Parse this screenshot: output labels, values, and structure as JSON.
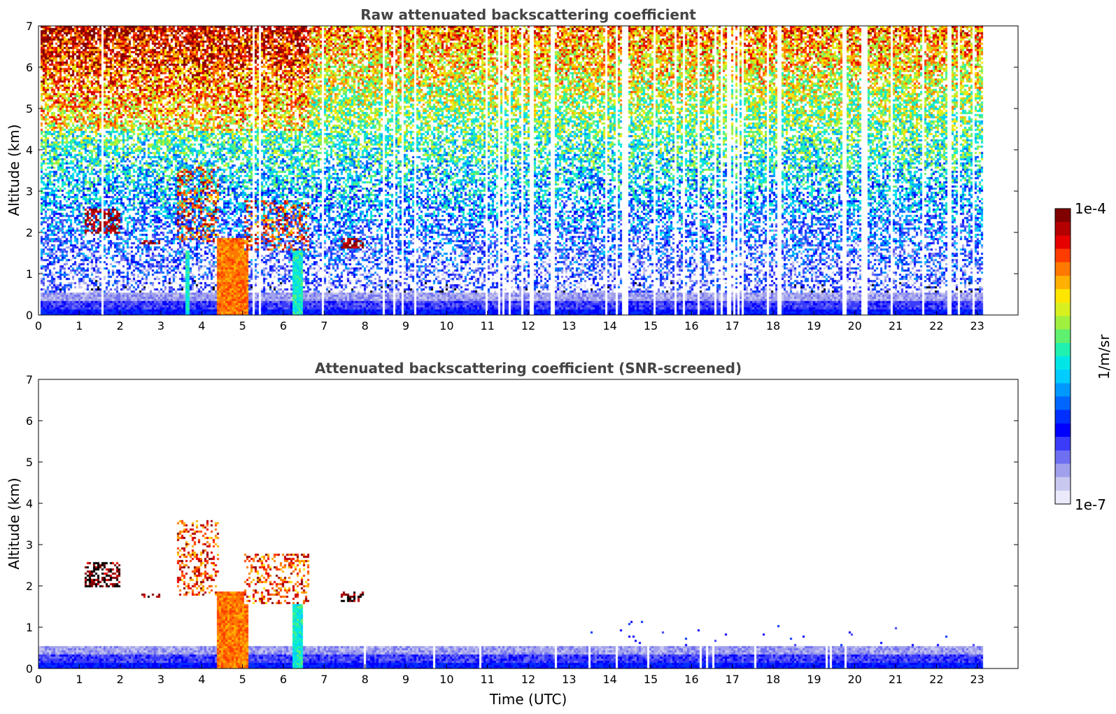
{
  "chart_data": [
    {
      "type": "heatmap",
      "title": "Raw attenuated backscattering coefficient",
      "ylabel": "Altitude (km)",
      "xlabel": "",
      "xlim": [
        0,
        24
      ],
      "ylim": [
        0,
        7
      ],
      "x_ticks": [
        0,
        1,
        2,
        3,
        4,
        5,
        6,
        7,
        8,
        9,
        10,
        11,
        12,
        13,
        14,
        15,
        16,
        17,
        18,
        19,
        20,
        21,
        22,
        23
      ],
      "y_ticks": [
        0,
        1,
        2,
        3,
        4,
        5,
        6,
        7
      ],
      "data_end_time": 23.15,
      "grid": false,
      "features": [
        {
          "kind": "aerosol-layer",
          "time_range": [
            1.1,
            2.0
          ],
          "altitude_km": [
            2.0,
            2.6
          ]
        },
        {
          "kind": "aerosol-layer",
          "time_range": [
            2.5,
            2.95
          ],
          "altitude_km": [
            1.75,
            1.85
          ]
        },
        {
          "kind": "cloud",
          "time_range": [
            3.35,
            4.4
          ],
          "altitude_km": [
            1.8,
            3.6
          ]
        },
        {
          "kind": "precipitation",
          "time_range": [
            4.35,
            5.1
          ],
          "altitude_km": [
            0.0,
            1.9
          ]
        },
        {
          "kind": "precipitation",
          "time_range": [
            3.55,
            3.7
          ],
          "altitude_km": [
            0.0,
            1.6
          ]
        },
        {
          "kind": "precipitation",
          "time_range": [
            6.2,
            6.45
          ],
          "altitude_km": [
            0.0,
            2.0
          ]
        },
        {
          "kind": "cloud",
          "time_range": [
            5.0,
            6.6
          ],
          "altitude_km": [
            1.6,
            2.8
          ]
        },
        {
          "kind": "aerosol-layer",
          "time_range": [
            7.4,
            8.0
          ],
          "altitude_km": [
            1.65,
            1.9
          ]
        },
        {
          "kind": "boundary-layer",
          "time_range": [
            0.0,
            23.15
          ],
          "altitude_km": [
            0.0,
            0.5
          ]
        }
      ]
    },
    {
      "type": "heatmap",
      "title": "Attenuated backscattering coefficient (SNR-screened)",
      "ylabel": "Altitude (km)",
      "xlabel": "Time (UTC)",
      "xlim": [
        0,
        24
      ],
      "ylim": [
        0,
        7
      ],
      "x_ticks": [
        0,
        1,
        2,
        3,
        4,
        5,
        6,
        7,
        8,
        9,
        10,
        11,
        12,
        13,
        14,
        15,
        16,
        17,
        18,
        19,
        20,
        21,
        22,
        23
      ],
      "y_ticks": [
        0,
        1,
        2,
        3,
        4,
        5,
        6,
        7
      ],
      "data_end_time": 23.15,
      "grid": false,
      "features": [
        {
          "kind": "aerosol-layer",
          "time_range": [
            1.1,
            2.0
          ],
          "altitude_km": [
            2.0,
            2.6
          ]
        },
        {
          "kind": "aerosol-layer",
          "time_range": [
            2.5,
            2.95
          ],
          "altitude_km": [
            1.75,
            1.85
          ]
        },
        {
          "kind": "cloud",
          "time_range": [
            3.35,
            4.4
          ],
          "altitude_km": [
            1.8,
            3.6
          ]
        },
        {
          "kind": "precipitation",
          "time_range": [
            4.35,
            5.1
          ],
          "altitude_km": [
            0.0,
            1.9
          ]
        },
        {
          "kind": "precipitation",
          "time_range": [
            6.2,
            6.45
          ],
          "altitude_km": [
            0.0,
            2.0
          ]
        },
        {
          "kind": "cloud",
          "time_range": [
            5.0,
            6.6
          ],
          "altitude_km": [
            1.6,
            2.8
          ]
        },
        {
          "kind": "aerosol-layer",
          "time_range": [
            7.4,
            8.0
          ],
          "altitude_km": [
            1.65,
            1.9
          ]
        },
        {
          "kind": "boundary-layer",
          "time_range": [
            0.0,
            23.15
          ],
          "altitude_km": [
            0.0,
            0.55
          ]
        }
      ]
    }
  ],
  "colorbar": {
    "label": "1/m/sr",
    "max_label": "1e-4",
    "min_label": "1e-7",
    "scale": "log",
    "range": [
      1e-07,
      0.0001
    ],
    "colormap": "jet",
    "colors": [
      "#eaeafa",
      "#c8c8f0",
      "#a0a0ec",
      "#6f6ff2",
      "#3b3bfa",
      "#0000ff",
      "#0030ff",
      "#0066ff",
      "#0099ff",
      "#00ccff",
      "#00e6e6",
      "#20f0b0",
      "#60f070",
      "#a0f040",
      "#d8f020",
      "#ffe600",
      "#ffb000",
      "#ff7800",
      "#ff3c00",
      "#e60000",
      "#b40000",
      "#800000"
    ]
  }
}
